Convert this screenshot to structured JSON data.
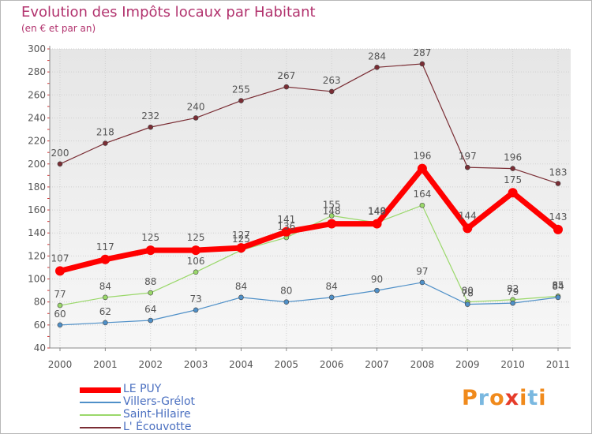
{
  "chart_data": {
    "type": "line",
    "title": "Evolution des Impôts locaux par Habitant",
    "subtitle": "(en € et par an)",
    "xlabel": "",
    "ylabel": "",
    "ylim": [
      40,
      300
    ],
    "yticks": [
      "40",
      "60",
      "80",
      "100",
      "120",
      "140",
      "160",
      "180",
      "200",
      "220",
      "240",
      "260",
      "280",
      "300"
    ],
    "categories": [
      "2000",
      "2001",
      "2002",
      "2003",
      "2004",
      "2005",
      "2006",
      "2007",
      "2008",
      "2009",
      "2010",
      "2011"
    ],
    "grid": true,
    "legend_position": "bottom-left",
    "series": [
      {
        "name": "LE PUY",
        "color": "#ff0000",
        "values": [
          107,
          117,
          125,
          125,
          127,
          141,
          148,
          148,
          196,
          144,
          175,
          143
        ],
        "labels": [
          "107",
          "117",
          "125",
          "125",
          "127",
          "141",
          "148",
          "148",
          "196",
          "144",
          "175",
          "143"
        ]
      },
      {
        "name": "Villers-Grélot",
        "color": "#4f90c8",
        "values": [
          60,
          62,
          64,
          73,
          84,
          80,
          84,
          90,
          97,
          78,
          79,
          84
        ],
        "labels": [
          "60",
          "62",
          "64",
          "73",
          "84",
          "80",
          "84",
          "90",
          "97",
          "78",
          "79",
          "84"
        ]
      },
      {
        "name": "Saint-Hilaire",
        "color": "#9ad86a",
        "values": [
          77,
          84,
          88,
          106,
          125,
          136,
          155,
          149,
          164,
          80,
          82,
          85
        ],
        "labels": [
          "77",
          "84",
          "88",
          "106",
          "125",
          "136",
          "155",
          "149",
          "164",
          "80",
          "82",
          "85"
        ]
      },
      {
        "name": "L' Écouvotte",
        "color": "#7a2d34",
        "values": [
          200,
          218,
          232,
          240,
          255,
          267,
          263,
          284,
          287,
          197,
          196,
          183
        ],
        "labels": [
          "200",
          "218",
          "232",
          "240",
          "255",
          "267",
          "263",
          "284",
          "287",
          "197",
          "196",
          "183"
        ]
      }
    ]
  },
  "logo": {
    "text": "Proxiti",
    "colors": [
      "#f08a1c",
      "#7ab8e0",
      "#f08a1c",
      "#e63c2a",
      "#f08a1c",
      "#7ab8e0",
      "#f08a1c"
    ]
  }
}
